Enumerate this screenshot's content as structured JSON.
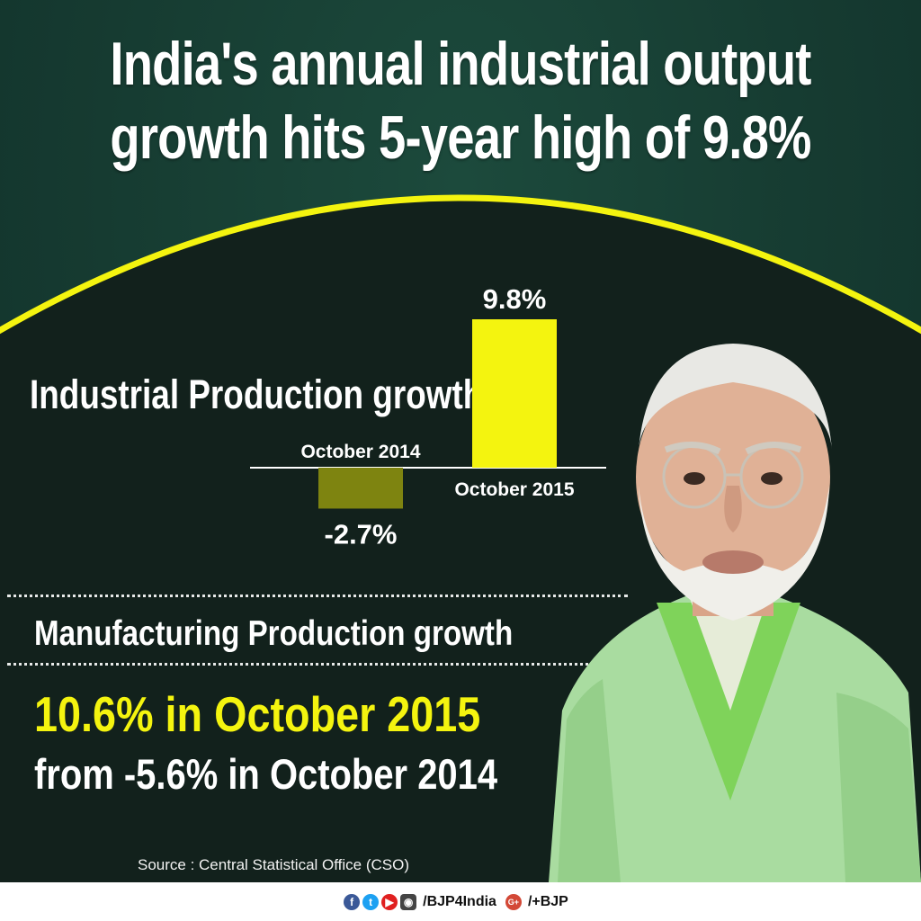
{
  "header": {
    "title_line1": "India's annual industrial output",
    "title_line2": "growth hits 5-year high of 9.8%"
  },
  "colors": {
    "background": "#163b31",
    "accent_yellow": "#f4f40f",
    "bar_positive": "#f4f40f",
    "bar_negative": "#7e8410",
    "text": "#ffffff"
  },
  "chart_data": {
    "type": "bar",
    "title": "Industrial Production growth",
    "categories": [
      "October 2014",
      "October 2015"
    ],
    "values": [
      -2.7,
      9.8
    ],
    "data_labels": [
      "-2.7%",
      "9.8%"
    ],
    "ylim": [
      -2.7,
      9.8
    ],
    "grid": false
  },
  "manufacturing": {
    "title": "Manufacturing Production growth",
    "line1": "10.6% in October 2015",
    "line2": "from -5.6% in October 2014"
  },
  "source": "Source : Central Statistical Office (CSO)",
  "footer": {
    "social_icons": [
      "facebook-icon",
      "twitter-icon",
      "youtube-icon",
      "instagram-icon",
      "google-plus-icon"
    ],
    "handle_main": "/BJP4India",
    "gplus_glyph": "G+",
    "handle_gplus": "/+BJP"
  }
}
